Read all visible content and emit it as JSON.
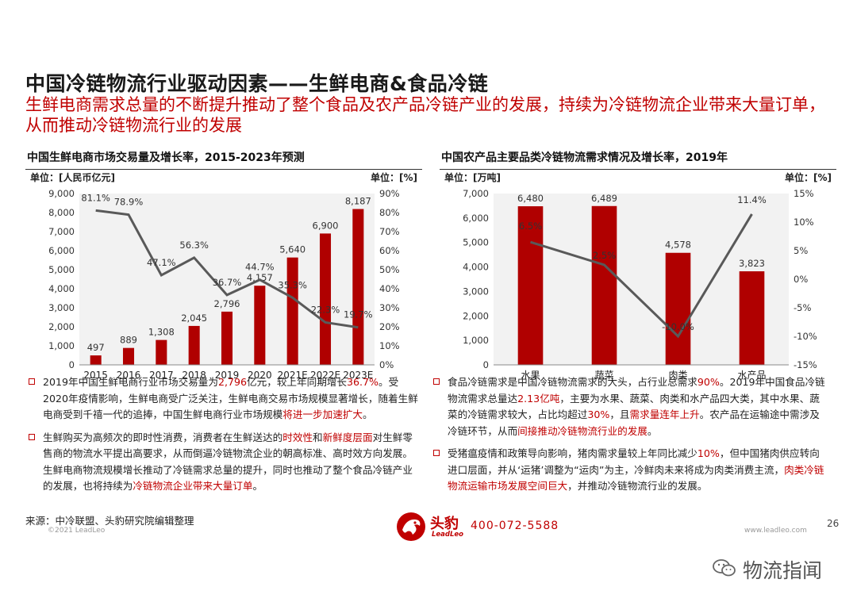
{
  "header": {
    "title": "中国冷链物流行业驱动因素——生鲜电商&食品冷链",
    "subtitle": "生鲜电商需求总量的不断提升推动了整个食品及农产品冷链产业的发展，持续为冷链物流企业带来大量订单，从而推动冷链物流行业的发展"
  },
  "chart_data": [
    {
      "type": "bar",
      "title": "中国生鲜电商市场交易量及增长率，2015-2023年预测",
      "y1_unit": "单位：[人民币亿元]",
      "y2_unit": "单位：[%]",
      "categories": [
        "2015",
        "2016",
        "2017",
        "2018",
        "2019",
        "2020",
        "2021E",
        "2022E",
        "2023E"
      ],
      "series": [
        {
          "type": "bar",
          "values": [
            497,
            889,
            1308,
            2045,
            2796,
            4157,
            5640,
            6900,
            8187
          ],
          "labels": [
            "497",
            "889",
            "1,308",
            "2,045",
            "2,796",
            "4,157",
            "5,640",
            "6,900",
            "8,187"
          ]
        },
        {
          "type": "line",
          "axis": "right",
          "values": [
            81.1,
            78.9,
            47.1,
            56.3,
            36.7,
            44.7,
            35.3,
            22.3,
            19.7
          ],
          "labels": [
            "81.1%",
            "78.9%",
            "47.1%",
            "56.3%",
            "36.7%",
            "44.7%",
            "35.3%",
            "22.3%",
            "19.7%"
          ]
        }
      ],
      "ylim": [
        0,
        9000
      ],
      "yticks": [
        "0",
        "1,000",
        "2,000",
        "3,000",
        "4,000",
        "5,000",
        "6,000",
        "7,000",
        "8,000",
        "9,000"
      ],
      "y2lim": [
        0,
        90
      ],
      "y2ticks": [
        "0%",
        "10%",
        "20%",
        "30%",
        "40%",
        "50%",
        "60%",
        "70%",
        "80%",
        "90%"
      ],
      "colors": {
        "bar": "#b00000",
        "line": "#595959",
        "plot_bg": "#f2f2f2"
      }
    },
    {
      "type": "bar",
      "title": "中国农产品主要品类冷链物流需求情况及增长率，2019年",
      "y1_unit": "单位：[万吨]",
      "y2_unit": "单位：[%]",
      "categories": [
        "水果",
        "蔬菜",
        "肉类",
        "水产品"
      ],
      "series": [
        {
          "type": "bar",
          "values": [
            6480,
            6489,
            4578,
            3823
          ],
          "labels": [
            "6,480",
            "6,489",
            "4,578",
            "3,823"
          ]
        },
        {
          "type": "line",
          "axis": "right",
          "values": [
            6.5,
            2.5,
            -10.0,
            11.4
          ],
          "labels": [
            "6.5%",
            "2.5%",
            "-10.0%",
            "11.4%"
          ]
        }
      ],
      "ylim": [
        0,
        7000
      ],
      "yticks": [
        "0",
        "1,000",
        "2,000",
        "3,000",
        "4,000",
        "5,000",
        "6,000",
        "7,000"
      ],
      "y2lim": [
        -15,
        15
      ],
      "y2ticks": [
        "-15%",
        "-10%",
        "-5%",
        "0%",
        "5%",
        "10%",
        "15%"
      ],
      "colors": {
        "bar": "#b00000",
        "line": "#595959",
        "plot_bg": "#f2f2f2"
      }
    }
  ],
  "bullets_left": [
    {
      "parts": [
        {
          "t": "2019年中国生鲜电商行业市场交易量为"
        },
        {
          "t": "2,796",
          "h": true
        },
        {
          "t": "亿元，较上年同期增长"
        },
        {
          "t": "36.7%",
          "h": true
        },
        {
          "t": "。受2020年疫情影响，生鲜电商受广泛关注，生鲜电商交易市场规模显著增长，随着生鲜电商受到千禧一代的追捧，中国生鲜电商行业市场规模"
        },
        {
          "t": "将进一步加速扩大",
          "h": true
        },
        {
          "t": "。"
        }
      ]
    },
    {
      "parts": [
        {
          "t": "生鲜购买为高频次的即时性消费，消费者在生鲜送达的"
        },
        {
          "t": "时效性",
          "h": true
        },
        {
          "t": "和"
        },
        {
          "t": "新鲜度层面",
          "h": true
        },
        {
          "t": "对生鲜零售商的物流水平提出高要求，从而倒逼冷链物流企业的朝高标准、高时效方向发展。生鲜电商物流规模增长推动了冷链需求总量的提升，同时也推动了整个食品冷链产业的发展，也将持续为"
        },
        {
          "t": "冷链物流企业带来大量订单",
          "h": true
        },
        {
          "t": "。"
        }
      ]
    }
  ],
  "bullets_right": [
    {
      "parts": [
        {
          "t": "食品冷链需求是中国冷链物流需求的大头，占行业总需求"
        },
        {
          "t": "90%",
          "h": true
        },
        {
          "t": "。2019年中国食品冷链物流需求总量达"
        },
        {
          "t": "2.13亿吨",
          "h": true
        },
        {
          "t": "，主要为水果、蔬菜、肉类和水产品四大类，其中水果、蔬菜的冷链需求较大，占比均超过"
        },
        {
          "t": "30%",
          "h": true
        },
        {
          "t": "，且"
        },
        {
          "t": "需求量连年上升",
          "h": true
        },
        {
          "t": "。农产品在运输途中需涉及冷链环节，从而"
        },
        {
          "t": "间接推动冷链物流行业的发展",
          "h": true
        },
        {
          "t": "。"
        }
      ]
    },
    {
      "parts": [
        {
          "t": "受猪瘟疫情和政策导向影响，猪肉需求量较上年同比减少"
        },
        {
          "t": "10%",
          "h": true
        },
        {
          "t": "，但中国猪肉供应转向进口层面，并从‘运猪’调整为“运肉”为主，冷鲜肉未来将成为肉类消费主流，"
        },
        {
          "t": "肉类冷链物流运输市场发展空间巨大",
          "h": true
        },
        {
          "t": "，并推动冷链物流行业的发展。"
        }
      ]
    }
  ],
  "footer": {
    "source": "来源：中冷联盟、头豹研究院编辑整理",
    "copyright": "©2021 LeadLeo",
    "website": "www.leadleo.com",
    "page": "26",
    "logo_cn": "头豹",
    "logo_en": "LeadLeo",
    "phone": "400-072-5588",
    "watermark": "物流指闻"
  }
}
